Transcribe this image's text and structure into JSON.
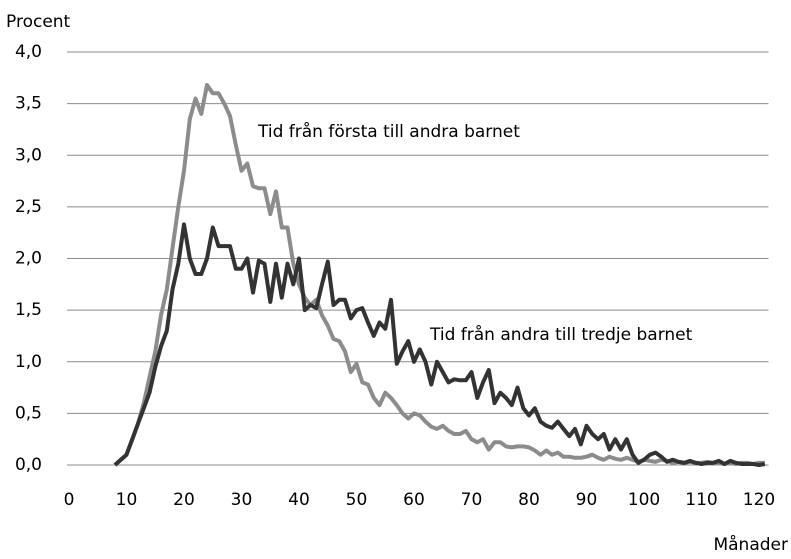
{
  "chart_data": {
    "type": "line",
    "ylabel": "Procent",
    "xlabel": "Månader",
    "x": [
      8,
      9,
      10,
      11,
      12,
      13,
      14,
      15,
      16,
      17,
      18,
      19,
      20,
      21,
      22,
      23,
      24,
      25,
      26,
      27,
      28,
      29,
      30,
      31,
      32,
      33,
      34,
      35,
      36,
      37,
      38,
      39,
      40,
      41,
      42,
      43,
      44,
      45,
      46,
      47,
      48,
      49,
      50,
      51,
      52,
      53,
      54,
      55,
      56,
      57,
      58,
      59,
      60,
      61,
      62,
      63,
      64,
      65,
      66,
      67,
      68,
      69,
      70,
      71,
      72,
      73,
      74,
      75,
      76,
      77,
      78,
      79,
      80,
      81,
      82,
      83,
      84,
      85,
      86,
      87,
      88,
      89,
      90,
      91,
      92,
      93,
      94,
      95,
      96,
      97,
      98,
      99,
      100,
      101,
      102,
      103,
      104,
      105,
      106,
      107,
      108,
      109,
      110,
      111,
      112,
      113,
      114,
      115,
      116,
      117,
      118,
      119,
      120,
      121
    ],
    "series": [
      {
        "name": "Tid från första till andra barnet",
        "color": "#8c8c8c",
        "values": [
          0,
          0.05,
          0.1,
          0.25,
          0.4,
          0.6,
          0.85,
          1.1,
          1.45,
          1.7,
          2.1,
          2.5,
          2.85,
          3.35,
          3.55,
          3.4,
          3.68,
          3.6,
          3.6,
          3.5,
          3.38,
          3.1,
          2.85,
          2.92,
          2.7,
          2.68,
          2.68,
          2.43,
          2.65,
          2.3,
          2.3,
          1.95,
          1.75,
          1.62,
          1.55,
          1.6,
          1.45,
          1.35,
          1.22,
          1.2,
          1.1,
          0.9,
          0.98,
          0.8,
          0.78,
          0.65,
          0.58,
          0.7,
          0.65,
          0.58,
          0.5,
          0.45,
          0.5,
          0.48,
          0.42,
          0.37,
          0.35,
          0.38,
          0.33,
          0.3,
          0.3,
          0.33,
          0.25,
          0.22,
          0.25,
          0.15,
          0.22,
          0.22,
          0.18,
          0.17,
          0.18,
          0.18,
          0.17,
          0.14,
          0.1,
          0.14,
          0.1,
          0.12,
          0.08,
          0.08,
          0.07,
          0.07,
          0.08,
          0.1,
          0.07,
          0.05,
          0.08,
          0.06,
          0.05,
          0.07,
          0.05,
          0.03,
          0.05,
          0.04,
          0.03,
          0.05,
          0.04,
          0.02,
          0.03,
          0.02,
          0.03,
          0.02,
          0.02,
          0.03,
          0.02,
          0.02,
          0.01,
          0.02,
          0.01,
          0.02,
          0.02,
          0.01,
          0.02,
          0.02
        ]
      },
      {
        "name": "Tid från andra till tredje barnet",
        "color": "#333333",
        "values": [
          0,
          0.05,
          0.1,
          0.25,
          0.4,
          0.55,
          0.7,
          0.95,
          1.15,
          1.3,
          1.7,
          1.95,
          2.33,
          2.0,
          1.85,
          1.85,
          2.0,
          2.3,
          2.12,
          2.12,
          2.12,
          1.9,
          1.9,
          2.0,
          1.67,
          1.98,
          1.95,
          1.58,
          1.95,
          1.62,
          1.95,
          1.75,
          2.0,
          1.5,
          1.55,
          1.52,
          1.75,
          1.97,
          1.55,
          1.6,
          1.6,
          1.42,
          1.5,
          1.52,
          1.38,
          1.25,
          1.38,
          1.32,
          1.6,
          0.98,
          1.1,
          1.2,
          1.0,
          1.12,
          1.0,
          0.78,
          1.0,
          0.9,
          0.8,
          0.83,
          0.82,
          0.82,
          0.9,
          0.65,
          0.8,
          0.92,
          0.6,
          0.7,
          0.65,
          0.58,
          0.75,
          0.55,
          0.48,
          0.55,
          0.42,
          0.38,
          0.36,
          0.42,
          0.35,
          0.28,
          0.35,
          0.2,
          0.38,
          0.3,
          0.25,
          0.3,
          0.15,
          0.25,
          0.15,
          0.25,
          0.1,
          0.02,
          0.05,
          0.1,
          0.12,
          0.08,
          0.03,
          0.05,
          0.03,
          0.02,
          0.04,
          0.02,
          0.01,
          0.02,
          0.02,
          0.04,
          0.01,
          0.04,
          0.02,
          0.01,
          0.01,
          0.01,
          0,
          0.01
        ]
      }
    ],
    "xlim": [
      0,
      122
    ],
    "xticks": [
      0,
      10,
      20,
      30,
      40,
      50,
      60,
      70,
      80,
      90,
      100,
      110,
      120
    ],
    "ylim": [
      0,
      4
    ],
    "yticks": [
      {
        "value": 0,
        "label": "0,0"
      },
      {
        "value": 0.5,
        "label": "0,5"
      },
      {
        "value": 1,
        "label": "1,0"
      },
      {
        "value": 1.5,
        "label": "1,5"
      },
      {
        "value": 2,
        "label": "2,0"
      },
      {
        "value": 2.5,
        "label": "2,5"
      },
      {
        "value": 3,
        "label": "3,0"
      },
      {
        "value": 3.5,
        "label": "3,5"
      },
      {
        "value": 4,
        "label": "4,0"
      }
    ],
    "grid": true
  }
}
